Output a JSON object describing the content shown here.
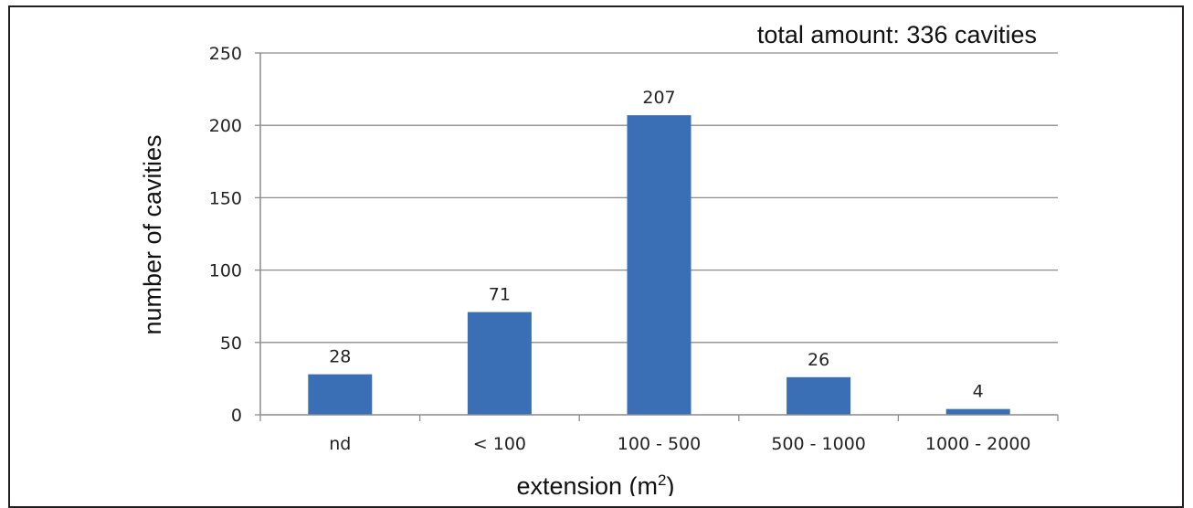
{
  "chart_data": {
    "type": "bar",
    "categories": [
      "nd",
      "< 100",
      "100 - 500",
      "500 - 1000",
      "1000 - 2000"
    ],
    "values": [
      28,
      71,
      207,
      26,
      4
    ],
    "data_labels": [
      "28",
      "71",
      "207",
      "26",
      "4"
    ],
    "title": "",
    "annotation": "total amount: 336 cavities",
    "xlabel": "extension (m",
    "xlabel_sup": "2",
    "xlabel_end": ")",
    "ylabel": "number of cavities",
    "ylim": [
      0,
      250
    ],
    "yticks": [
      0,
      50,
      100,
      150,
      200,
      250
    ],
    "ytick_labels": [
      "0",
      "50",
      "100",
      "150",
      "200",
      "250"
    ],
    "grid": true,
    "legend": "none",
    "colors": {
      "bar": "#3a6fb5",
      "grid": "#8c8c8c",
      "axis": "#8c8c8c"
    }
  }
}
